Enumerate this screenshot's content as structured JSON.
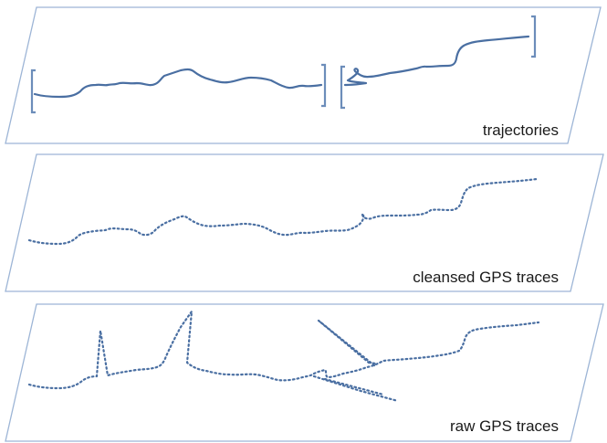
{
  "layers": {
    "trajectories": {
      "label": "trajectories"
    },
    "cleansed": {
      "label": "cleansed GPS traces"
    },
    "raw": {
      "label": "raw GPS traces"
    }
  }
}
